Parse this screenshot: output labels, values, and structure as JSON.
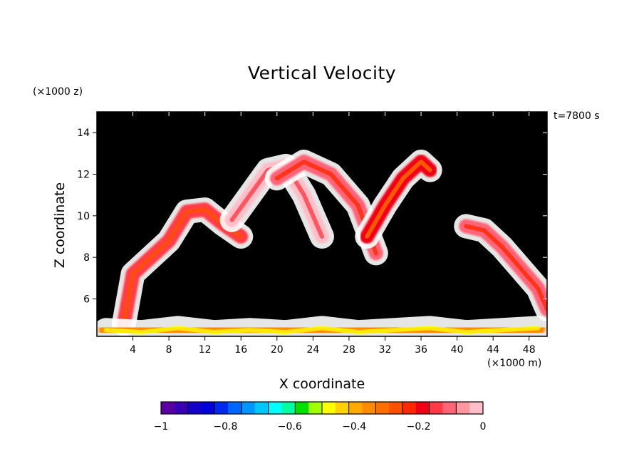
{
  "chart_data": {
    "type": "heatmap",
    "title": "Vertical Velocity",
    "xlabel": "X coordinate",
    "ylabel": "Z coordinate",
    "x_unit_label": "(×1000 m)",
    "y_unit_label": "(×1000 z)",
    "annotation": "t=7800 s",
    "xlim": [
      0,
      50
    ],
    "ylim": [
      4.2,
      15
    ],
    "x_ticks": [
      "4",
      "8",
      "12",
      "16",
      "20",
      "24",
      "28",
      "32",
      "36",
      "40",
      "44",
      "48"
    ],
    "y_ticks": [
      "6",
      "8",
      "10",
      "12",
      "14"
    ],
    "background_value_color": "#000000",
    "colorbar": {
      "range": [
        -1,
        0
      ],
      "tick_labels": [
        "−1",
        "−0.8",
        "−0.6",
        "−0.4",
        "−0.2",
        "0"
      ],
      "colors": [
        "#5a00a0",
        "#3a00b4",
        "#1400c8",
        "#0000dc",
        "#0028f0",
        "#0064ff",
        "#0096ff",
        "#00c8ff",
        "#00ffff",
        "#00ffa0",
        "#00e000",
        "#a0ff00",
        "#ffff00",
        "#ffd200",
        "#ffaa00",
        "#ff8c00",
        "#ff6e00",
        "#ff5000",
        "#ff2800",
        "#f00014",
        "#ff3c46",
        "#ff6478",
        "#ff96a0",
        "#ffbec8"
      ]
    },
    "features": [
      {
        "x": [
          3,
          4,
          8,
          10,
          12,
          14,
          16
        ],
        "z": [
          4.8,
          7.2,
          8.8,
          10.2,
          10.3,
          9.6,
          9.0
        ],
        "value": -0.15
      },
      {
        "x": [
          15,
          17,
          19,
          21,
          23,
          25
        ],
        "z": [
          9.8,
          11.0,
          12.2,
          12.4,
          11.0,
          9.0
        ],
        "value": -0.02
      },
      {
        "x": [
          20,
          23,
          26,
          29,
          31
        ],
        "z": [
          11.8,
          12.6,
          12.0,
          10.5,
          8.2
        ],
        "value": -0.1
      },
      {
        "x": [
          30,
          32,
          34,
          36,
          37
        ],
        "z": [
          9.0,
          10.5,
          11.8,
          12.6,
          12.2
        ],
        "value": -0.18
      },
      {
        "x": [
          41,
          43,
          45,
          47,
          49,
          50
        ],
        "z": [
          9.5,
          9.3,
          8.5,
          7.5,
          6.5,
          5.5
        ],
        "value": -0.12
      },
      {
        "x": [
          1,
          5,
          9,
          13,
          17,
          21,
          25,
          29,
          33,
          37,
          41,
          45,
          49
        ],
        "z": [
          4.5,
          4.4,
          4.6,
          4.4,
          4.5,
          4.4,
          4.6,
          4.4,
          4.5,
          4.6,
          4.4,
          4.5,
          4.6
        ],
        "value": -0.35
      }
    ]
  }
}
